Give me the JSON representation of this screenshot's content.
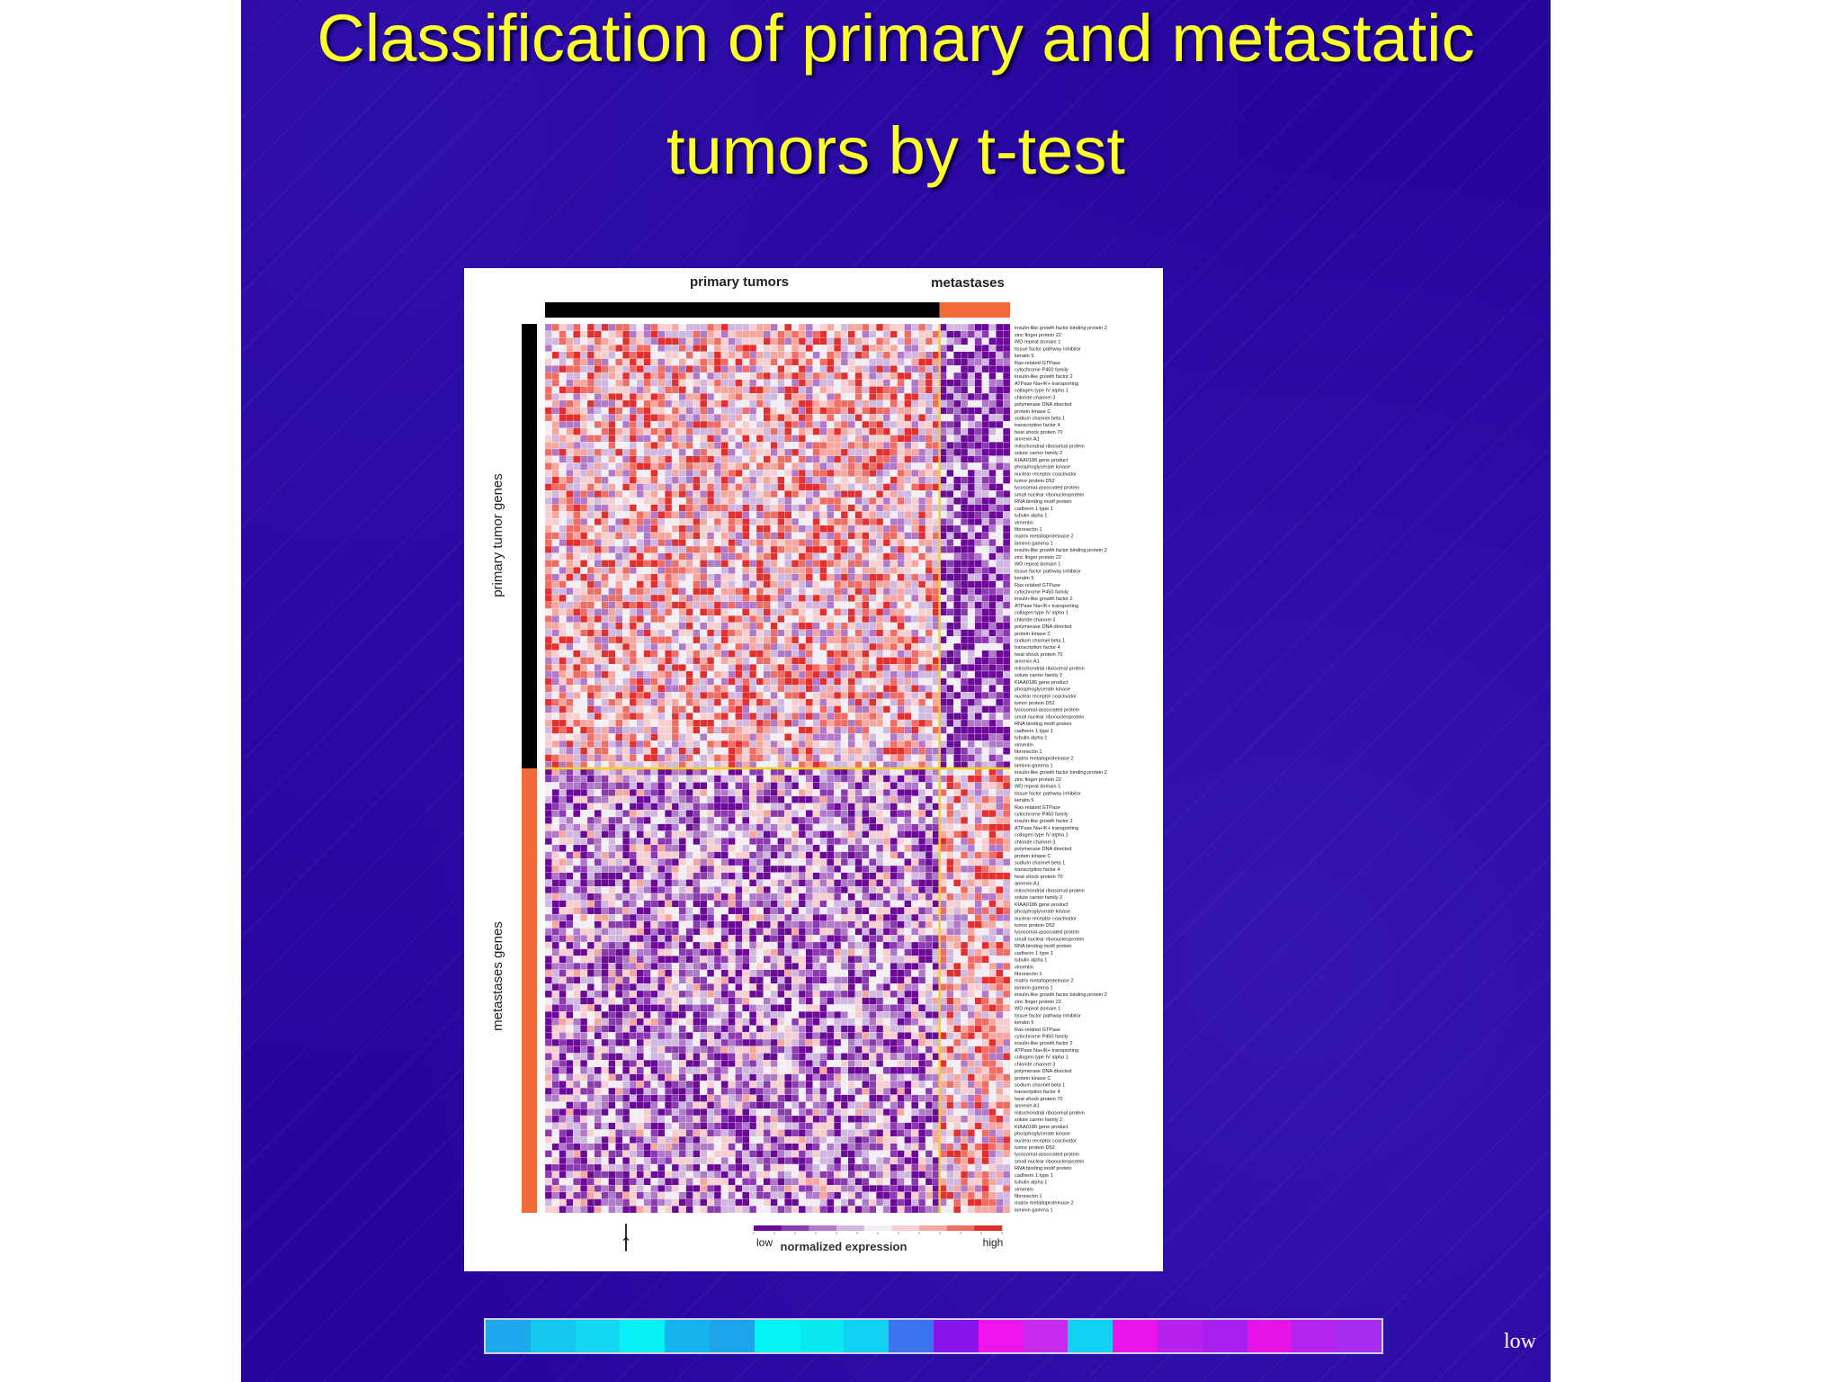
{
  "slide": {
    "title_line1": "Classification of primary and metastatic",
    "title_line2": "tumors by t-test",
    "legend_low_label": "low",
    "legend_bar_colors": [
      "#1fa8ee",
      "#14c8f0",
      "#12d8f4",
      "#08f0f4",
      "#16b4ee",
      "#1ea4ea",
      "#04f4f4",
      "#08eaf0",
      "#12d2f4",
      "#3a74ee",
      "#8a14ec",
      "#ee14ee",
      "#c82aee",
      "#12d2f4",
      "#ea14ea",
      "#b820ee",
      "#a820ee",
      "#e614e6",
      "#b424ee",
      "#a82cf0"
    ]
  },
  "chart_data": {
    "type": "heatmap",
    "column_groups": [
      {
        "label": "primary tumors",
        "color": "#000000",
        "count": 56
      },
      {
        "label": "metastases",
        "color": "#f26a3a",
        "count": 10
      }
    ],
    "row_groups": [
      {
        "label": "primary tumor genes",
        "color": "#000000",
        "count": 64
      },
      {
        "label": "metastases genes",
        "color": "#f26a3a",
        "count": 64
      }
    ],
    "colorscale": {
      "low_label": "low",
      "high_label": "high",
      "title": "normalized expression",
      "colors": [
        "#6a0a96",
        "#8c3ab0",
        "#b07ac8",
        "#d0b8e0",
        "#f2eef4",
        "#f6d0d0",
        "#f4a8a0",
        "#ee6e66",
        "#e03030"
      ]
    },
    "marker": "↑",
    "gene_labels": [
      "insulin-like growth factor binding protein 2",
      "zinc finger protein 22",
      "WD repeat domain 1",
      "tissue factor pathway inhibitor",
      "keratin 5",
      "Ras-related GTPase",
      "cytochrome P450 family",
      "insulin-like growth factor 2",
      "ATPase Na+/K+ transporting",
      "collagen type IV alpha 1",
      "chloride channel 3",
      "polymerase DNA directed",
      "protein kinase C",
      "sodium channel beta 1",
      "transcription factor 4",
      "heat shock protein 70",
      "annexin A1",
      "mitochondrial ribosomal protein",
      "solute carrier family 2",
      "KIAA0186 gene product",
      "phosphoglycerate kinase",
      "nuclear receptor coactivator",
      "tumor protein D52",
      "lysosomal-associated protein",
      "small nuclear ribonucleoprotein",
      "RNA binding motif protein",
      "cadherin 1 type 1",
      "tubulin alpha 1",
      "vimentin",
      "fibronectin 1",
      "matrix metalloproteinase 2",
      "laminin gamma 1"
    ]
  }
}
